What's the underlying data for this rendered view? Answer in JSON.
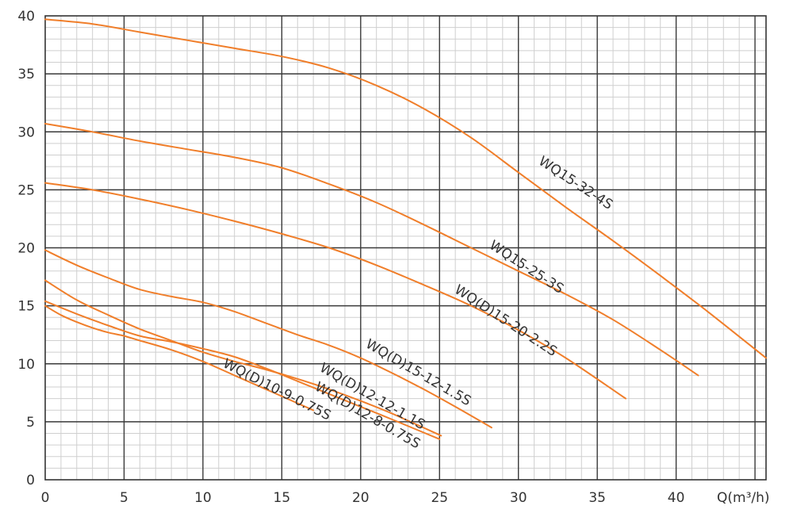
{
  "chart_data": {
    "type": "line",
    "title": "",
    "xlabel": "Q(m³/h)",
    "ylabel": "",
    "xlim": [
      0,
      45.7
    ],
    "ylim": [
      0,
      40
    ],
    "x_ticks": [
      "0",
      "5",
      "10",
      "15",
      "20",
      "25",
      "30",
      "35",
      "40"
    ],
    "y_ticks": [
      "0",
      "5",
      "10",
      "15",
      "20",
      "25",
      "30",
      "35",
      "40"
    ],
    "grid": true,
    "legend": "none",
    "line_color": "#f07e2a",
    "series": [
      {
        "name": "WQ15-32-4S",
        "x": [
          0,
          3,
          6,
          9,
          12,
          15,
          18,
          21,
          24,
          27,
          30,
          33,
          36,
          39,
          42,
          45.7
        ],
        "y": [
          39.7,
          39.3,
          38.6,
          37.9,
          37.2,
          36.5,
          35.5,
          34.0,
          32.0,
          29.5,
          26.5,
          23.5,
          20.6,
          17.6,
          14.5,
          10.5
        ]
      },
      {
        "name": "WQ15-25-3S",
        "x": [
          0,
          3,
          6,
          9,
          12,
          15,
          18,
          21,
          24,
          27,
          30,
          33,
          36,
          39,
          41.4
        ],
        "y": [
          30.7,
          30.0,
          29.2,
          28.5,
          27.8,
          26.9,
          25.5,
          23.9,
          22.0,
          20.0,
          18.0,
          16.0,
          13.8,
          11.2,
          9.0
        ]
      },
      {
        "name": "WQ(D)15-20-2.2S",
        "x": [
          0,
          3,
          6,
          9,
          12,
          15,
          18,
          21,
          24,
          27,
          30,
          33,
          36.8
        ],
        "y": [
          25.6,
          25.0,
          24.2,
          23.3,
          22.3,
          21.2,
          20.0,
          18.5,
          16.8,
          15.0,
          12.9,
          10.5,
          7.0
        ]
      },
      {
        "name": "WQ(D)15-12-1.5S",
        "x": [
          0,
          2,
          4,
          6,
          8,
          10,
          12,
          14,
          16,
          18,
          20,
          22,
          24,
          26,
          28.3
        ],
        "y": [
          19.8,
          18.5,
          17.4,
          16.4,
          15.8,
          15.3,
          14.5,
          13.5,
          12.5,
          11.6,
          10.5,
          9.2,
          7.8,
          6.3,
          4.5
        ]
      },
      {
        "name": "WQ(D)12-12-1.1S",
        "x": [
          0,
          2,
          4,
          6,
          8,
          10,
          12,
          14,
          16,
          18,
          20,
          22,
          25.1
        ],
        "y": [
          17.2,
          15.5,
          14.2,
          13.0,
          12.0,
          11.0,
          10.2,
          9.5,
          8.7,
          7.8,
          6.8,
          5.7,
          3.8
        ]
      },
      {
        "name": "WQ(D)12-8-0.75S",
        "x": [
          0,
          2,
          4,
          6,
          8,
          10,
          12,
          14,
          16,
          18,
          20,
          22,
          25
        ],
        "y": [
          15.4,
          14.3,
          13.3,
          12.4,
          11.9,
          11.3,
          10.6,
          9.6,
          8.5,
          7.4,
          6.3,
          5.2,
          3.5
        ]
      },
      {
        "name": "WQ(D)10-9-0.75S",
        "x": [
          0,
          1,
          2,
          3,
          4,
          5,
          6,
          8,
          10,
          12,
          14,
          16,
          17
        ],
        "y": [
          15.0,
          14.2,
          13.6,
          13.1,
          12.7,
          12.4,
          12.0,
          11.2,
          10.2,
          9.0,
          7.8,
          6.6,
          6.0
        ]
      }
    ],
    "labels": [
      {
        "series": "WQ15-32-4S",
        "text": "WQ15-32-4S"
      },
      {
        "series": "WQ15-25-3S",
        "text": "WQ15-25-3S"
      },
      {
        "series": "WQ(D)15-20-2.2S",
        "text": "WQ(D)15-20-2.2S"
      },
      {
        "series": "WQ(D)15-12-1.5S",
        "text": "WQ(D)15-12-1.5S"
      },
      {
        "series": "WQ(D)12-12-1.1S",
        "text": "WQ(D)12-12-1.1S"
      },
      {
        "series": "WQ(D)12-8-0.75S",
        "text": "WQ(D)12-8-0.75S"
      },
      {
        "series": "WQ(D)10-9-0.75S",
        "text": "WQ(D)10-9-0.75S"
      }
    ]
  }
}
